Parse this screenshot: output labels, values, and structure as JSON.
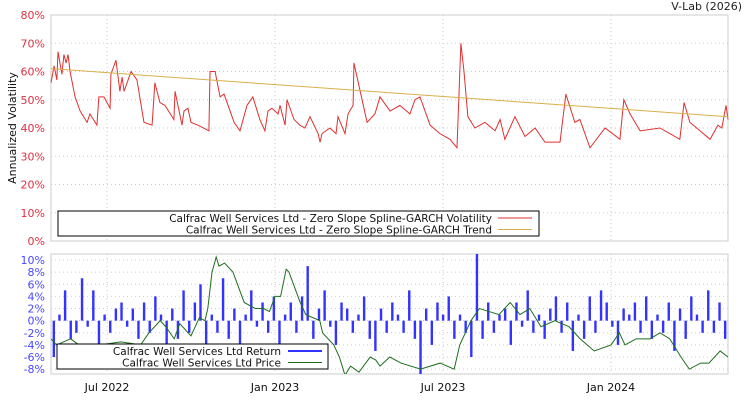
{
  "watermark": "V-Lab (2026)",
  "chart_data": [
    {
      "type": "line",
      "ylabel": "Annualized Volatility",
      "x_units": "months since May 2022",
      "ylim": [
        0,
        80
      ],
      "yticks": [
        "0%",
        "10%",
        "20%",
        "30%",
        "40%",
        "50%",
        "60%",
        "70%",
        "80%"
      ],
      "ytick_values": [
        0,
        10,
        20,
        30,
        40,
        50,
        60,
        70,
        80
      ],
      "grid": true,
      "legend_position": "bottom-left",
      "colors": {
        "volatility": "#e03030",
        "trend": "#d8b048",
        "tick": "#e03040"
      },
      "series": [
        {
          "name": "Calfrac Well Services Ltd - Zero Slope Spline-GARCH Volatility",
          "points": [
            [
              0,
              56
            ],
            [
              0.11,
              62
            ],
            [
              0.21,
              57
            ],
            [
              0.25,
              67
            ],
            [
              0.39,
              59
            ],
            [
              0.46,
              66
            ],
            [
              0.54,
              63
            ],
            [
              0.61,
              66
            ],
            [
              0.68,
              60
            ],
            [
              0.86,
              51
            ],
            [
              1.04,
              46
            ],
            [
              1.29,
              42
            ],
            [
              1.39,
              45
            ],
            [
              1.64,
              41
            ],
            [
              1.71,
              51
            ],
            [
              1.89,
              51
            ],
            [
              2.11,
              47
            ],
            [
              2.14,
              59
            ],
            [
              2.32,
              64
            ],
            [
              2.46,
              53
            ],
            [
              2.54,
              58
            ],
            [
              2.61,
              53
            ],
            [
              2.86,
              60
            ],
            [
              3.07,
              57
            ],
            [
              3.32,
              42
            ],
            [
              3.61,
              41
            ],
            [
              3.71,
              56
            ],
            [
              3.89,
              49
            ],
            [
              4.07,
              48
            ],
            [
              4.39,
              43
            ],
            [
              4.43,
              53
            ],
            [
              4.68,
              41
            ],
            [
              4.75,
              46
            ],
            [
              4.89,
              47
            ],
            [
              5.0,
              42
            ],
            [
              5.25,
              41
            ],
            [
              5.64,
              39
            ],
            [
              5.68,
              60
            ],
            [
              5.86,
              60
            ],
            [
              6.04,
              51
            ],
            [
              6.18,
              52
            ],
            [
              6.54,
              42
            ],
            [
              6.75,
              39
            ],
            [
              7.0,
              48
            ],
            [
              7.21,
              51
            ],
            [
              7.46,
              43
            ],
            [
              7.64,
              39
            ],
            [
              7.75,
              46
            ],
            [
              7.89,
              47
            ],
            [
              8.11,
              45
            ],
            [
              8.18,
              48
            ],
            [
              8.36,
              41
            ],
            [
              8.43,
              50
            ],
            [
              8.68,
              43
            ],
            [
              8.89,
              41
            ],
            [
              9.07,
              40
            ],
            [
              9.25,
              44
            ],
            [
              9.54,
              38
            ],
            [
              9.61,
              35
            ],
            [
              9.68,
              38
            ],
            [
              9.96,
              40
            ],
            [
              10.18,
              38
            ],
            [
              10.25,
              44
            ],
            [
              10.5,
              38
            ],
            [
              10.61,
              45
            ],
            [
              10.79,
              48
            ],
            [
              10.82,
              63
            ],
            [
              11.11,
              50
            ],
            [
              11.29,
              42
            ],
            [
              11.57,
              45
            ],
            [
              11.75,
              51
            ],
            [
              12.11,
              46
            ],
            [
              12.46,
              48
            ],
            [
              12.82,
              45
            ],
            [
              13.0,
              50
            ],
            [
              13.18,
              51
            ],
            [
              13.54,
              41
            ],
            [
              13.89,
              38
            ],
            [
              14.25,
              36
            ],
            [
              14.5,
              33
            ],
            [
              14.64,
              70
            ],
            [
              14.75,
              60
            ],
            [
              14.89,
              44
            ],
            [
              15.14,
              40
            ],
            [
              15.5,
              42
            ],
            [
              15.86,
              39
            ],
            [
              16.04,
              43
            ],
            [
              16.21,
              36
            ],
            [
              16.57,
              44
            ],
            [
              16.93,
              37
            ],
            [
              17.29,
              40
            ],
            [
              17.64,
              35
            ],
            [
              18.18,
              35
            ],
            [
              18.39,
              52
            ],
            [
              18.71,
              42
            ],
            [
              18.89,
              43
            ],
            [
              19.25,
              33
            ],
            [
              19.79,
              40
            ],
            [
              20.32,
              36
            ],
            [
              20.46,
              50
            ],
            [
              20.68,
              45
            ],
            [
              21.04,
              39
            ],
            [
              21.75,
              40
            ],
            [
              22.46,
              36
            ],
            [
              22.61,
              49
            ],
            [
              22.82,
              42
            ],
            [
              23.54,
              36
            ],
            [
              23.82,
              41
            ],
            [
              23.96,
              40
            ],
            [
              24.11,
              48
            ],
            [
              24.18,
              43
            ]
          ]
        },
        {
          "name": "Calfrac Well Services Ltd - Zero Slope Spline-GARCH Trend",
          "points": [
            [
              0,
              61
            ],
            [
              24.18,
              44
            ]
          ]
        }
      ]
    },
    {
      "type": "bar+line",
      "ylim": [
        -8.8,
        11
      ],
      "yticks": [
        "-8%",
        "-6%",
        "-4%",
        "-2%",
        "0%",
        "2%",
        "4%",
        "6%",
        "8%",
        "10%"
      ],
      "ytick_values": [
        -8,
        -6,
        -4,
        -2,
        0,
        2,
        4,
        6,
        8,
        10
      ],
      "xlim": [
        0,
        24.18
      ],
      "xticks": [
        "Jul 2022",
        "Jan 2023",
        "Jul 2023",
        "Jan 2024"
      ],
      "xtick_values": [
        2,
        8,
        14,
        20
      ],
      "grid": true,
      "legend_position": "bottom-left",
      "colors": {
        "return": "#3333ff",
        "price": "#1e6e1e",
        "tick": "#4848ff"
      },
      "series": [
        {
          "name": "Calfrac Well Services Ltd Return",
          "values": [
            -6,
            1,
            5,
            -3,
            -2,
            7,
            -1,
            5,
            -4,
            1,
            -2,
            2,
            3,
            -1,
            2,
            -3,
            3,
            -2,
            4,
            1,
            -5,
            2,
            -3,
            5,
            -2,
            3,
            6,
            -4,
            1,
            -2,
            7,
            -3,
            2,
            -4,
            1,
            5,
            -1,
            3,
            -2,
            4,
            -5,
            1,
            3,
            -2,
            4,
            9,
            -3,
            2,
            5,
            -1,
            -4,
            3,
            2,
            -2,
            1,
            4,
            -3,
            -5,
            2,
            -2,
            3,
            1,
            -2,
            5,
            -3,
            -9,
            2,
            -4,
            3,
            1,
            4,
            -3,
            1,
            -2,
            -6,
            11,
            -3,
            3,
            -2,
            1,
            2,
            -4,
            3,
            -1,
            5,
            -2,
            1,
            -3,
            2,
            4,
            -2,
            3,
            -5,
            1,
            -3,
            4,
            -2,
            5,
            3,
            -1,
            -4,
            2,
            1,
            3,
            -2,
            4,
            -3,
            1,
            -2,
            3,
            -5,
            2,
            -3,
            4,
            1,
            -2,
            5,
            -2,
            3,
            -3
          ]
        },
        {
          "name": "Calfrac Well Services Ltd Price",
          "points": [
            [
              0,
              -3
            ],
            [
              0.2,
              -4
            ],
            [
              0.7,
              -3
            ],
            [
              1.0,
              -4
            ],
            [
              1.2,
              -5
            ],
            [
              1.75,
              -4
            ],
            [
              2.5,
              -3.5
            ],
            [
              3.2,
              -4
            ],
            [
              3.5,
              -2
            ],
            [
              3.9,
              0
            ],
            [
              4.1,
              -1
            ],
            [
              4.4,
              -3
            ],
            [
              4.6,
              -0.5
            ],
            [
              5.0,
              -2.5
            ],
            [
              5.3,
              0.5
            ],
            [
              5.5,
              0
            ],
            [
              5.6,
              2
            ],
            [
              5.75,
              8
            ],
            [
              5.9,
              10.5
            ],
            [
              6.0,
              9
            ],
            [
              6.2,
              9.5
            ],
            [
              6.5,
              8
            ],
            [
              6.9,
              3
            ],
            [
              7.3,
              2
            ],
            [
              7.6,
              2
            ],
            [
              7.8,
              1.5
            ],
            [
              8.0,
              4
            ],
            [
              8.2,
              4
            ],
            [
              8.4,
              8.5
            ],
            [
              8.5,
              8
            ],
            [
              8.9,
              3
            ],
            [
              9.1,
              1
            ],
            [
              9.6,
              0
            ],
            [
              9.7,
              -2
            ],
            [
              9.9,
              -3
            ],
            [
              10.1,
              -4
            ],
            [
              10.3,
              -6
            ],
            [
              10.5,
              -9
            ],
            [
              10.7,
              -7.5
            ],
            [
              11.0,
              -8.5
            ],
            [
              11.4,
              -6
            ],
            [
              11.6,
              -6.5
            ],
            [
              11.75,
              -7.5
            ],
            [
              12.1,
              -6
            ],
            [
              12.5,
              -7
            ],
            [
              13.2,
              -8
            ],
            [
              13.9,
              -7
            ],
            [
              14.4,
              -8
            ],
            [
              14.6,
              -4
            ],
            [
              15.0,
              0
            ],
            [
              15.3,
              2
            ],
            [
              16.0,
              1
            ],
            [
              16.4,
              3
            ],
            [
              16.75,
              1
            ],
            [
              17.1,
              2
            ],
            [
              17.5,
              -1
            ],
            [
              18.0,
              0
            ],
            [
              18.5,
              -1
            ],
            [
              18.9,
              -3
            ],
            [
              19.4,
              -5
            ],
            [
              20.0,
              -4
            ],
            [
              20.3,
              -2
            ],
            [
              20.5,
              -4
            ],
            [
              20.9,
              -3
            ],
            [
              21.4,
              -3
            ],
            [
              21.75,
              -2
            ],
            [
              22.1,
              -3
            ],
            [
              22.5,
              -6
            ],
            [
              22.8,
              -8
            ],
            [
              23.2,
              -7
            ],
            [
              23.5,
              -7
            ],
            [
              23.9,
              -5
            ],
            [
              24.18,
              -6
            ]
          ]
        }
      ]
    }
  ]
}
